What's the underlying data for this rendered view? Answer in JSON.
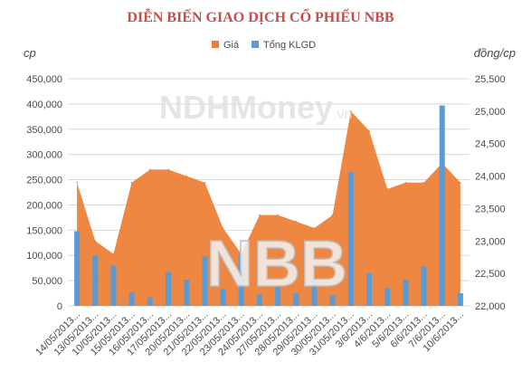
{
  "chart_data": {
    "type": "area+bar",
    "title": "DIỄN BIẾN GIAO DỊCH CỔ PHIẾU NBB",
    "left_unit": "cp",
    "right_unit": "đồng/cp",
    "categories": [
      "14/05/2013...",
      "13/05/2013...",
      "10/05/2013...",
      "15/05/2013...",
      "16/05/2013...",
      "17/05/2013...",
      "20/05/2013...",
      "21/05/2013...",
      "22/05/2013...",
      "23/05/2013...",
      "24/05/2013...",
      "27/05/2013...",
      "28/05/2013...",
      "29/05/2013...",
      "30/05/2013...",
      "31/05/2013...",
      "3/6/2013...",
      "4/6/2013...",
      "5/6/2013...",
      "6/6/2013...",
      "7/6/2013...",
      "10/6/2013..."
    ],
    "series": [
      {
        "name": "Giá",
        "type": "area",
        "axis": "right",
        "color": "#ed7d31",
        "values": [
          23900,
          23000,
          22800,
          23900,
          24100,
          24100,
          24000,
          23900,
          23200,
          22800,
          23400,
          23400,
          23300,
          23200,
          23400,
          25000,
          24700,
          23800,
          23900,
          23900,
          24200,
          23900
        ]
      },
      {
        "name": "Tổng KLGD",
        "type": "bar",
        "axis": "left",
        "color": "#5b9bd5",
        "values": [
          148000,
          100000,
          80000,
          27000,
          17000,
          67000,
          52000,
          98000,
          33000,
          103000,
          23000,
          38000,
          25000,
          52000,
          21000,
          265000,
          65000,
          35000,
          52000,
          78000,
          397000,
          25000
        ]
      }
    ],
    "left_axis": {
      "min": 0,
      "max": 450000,
      "step": 50000,
      "ticks": [
        "0",
        "50,000",
        "100,000",
        "150,000",
        "200,000",
        "250,000",
        "300,000",
        "350,000",
        "400,000",
        "450,000"
      ]
    },
    "right_axis": {
      "min": 22000,
      "max": 25500,
      "step": 500,
      "ticks": [
        "22,000",
        "22,500",
        "23,000",
        "23,500",
        "24,000",
        "24,500",
        "25,000",
        "25,500"
      ]
    },
    "grid": true,
    "legend_position": "top-center",
    "watermark": {
      "logo_text": "NDHMoney",
      "logo_suffix": ".vn",
      "center_text": "NBB"
    }
  },
  "colors": {
    "title": "#c0504d",
    "area": "#ed7d31",
    "bar": "#5b9bd5",
    "grid": "#d9d9d9"
  }
}
